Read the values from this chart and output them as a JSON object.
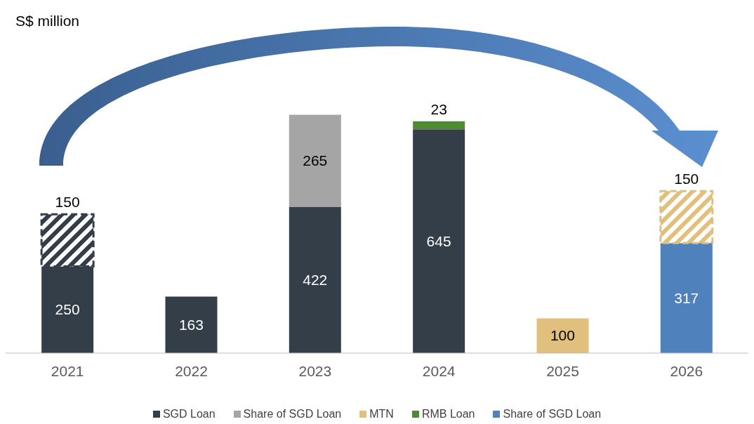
{
  "chart_data": {
    "type": "bar",
    "annotations": [
      "S$ million"
    ],
    "stacked": true,
    "data_labels": true,
    "legend": "bottom",
    "categories": [
      "2021",
      "2022",
      "2023",
      "2024",
      "2025",
      "2026"
    ],
    "series": [
      {
        "name": "SGD Loan",
        "color": "#343e48",
        "values": [
          250,
          163,
          422,
          645,
          null,
          null
        ]
      },
      {
        "name": "Share of SGD Loan",
        "color": "#a5a5a5",
        "values": [
          null,
          null,
          265,
          null,
          null,
          null
        ]
      },
      {
        "name": "MTN",
        "color": "#e0c07c",
        "values": [
          null,
          null,
          null,
          null,
          100,
          null
        ]
      },
      {
        "name": "RMB Loan",
        "color": "#4f8a35",
        "values": [
          null,
          null,
          null,
          23,
          null,
          null
        ]
      },
      {
        "name": "Share of SGD Loan",
        "color": "#4f81bd",
        "values": [
          null,
          null,
          null,
          null,
          null,
          317
        ]
      },
      {
        "color": "#343e48",
        "values": [
          150,
          null,
          null,
          null,
          null,
          null
        ]
      },
      {
        "color": "#e0c07c",
        "values": [
          null,
          null,
          null,
          null,
          null,
          150
        ]
      }
    ]
  }
}
